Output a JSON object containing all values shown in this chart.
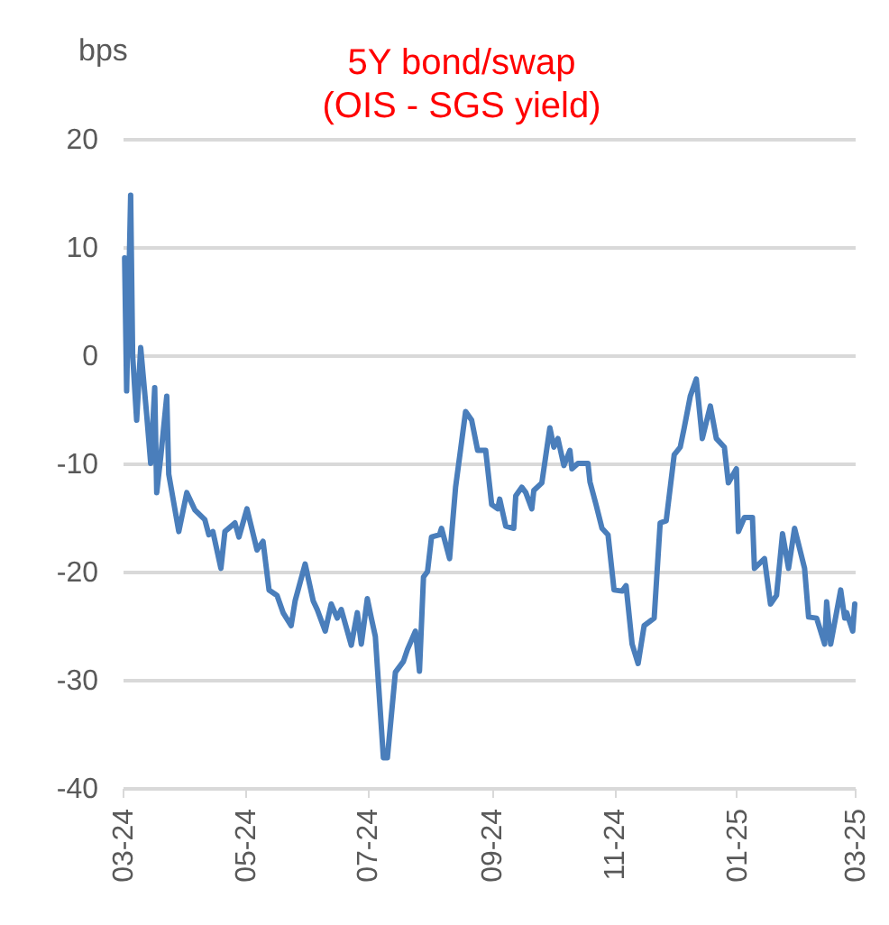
{
  "chart_data": {
    "type": "line",
    "title": "5Y bond/swap",
    "subtitle": "(OIS - SGS yield)",
    "ylabel": "bps",
    "x": [
      "2024-03-02",
      "2024-03-03",
      "2024-03-05",
      "2024-03-06",
      "2024-03-08",
      "2024-03-10",
      "2024-03-13",
      "2024-03-15",
      "2024-03-17",
      "2024-03-18",
      "2024-03-20",
      "2024-03-23",
      "2024-03-24",
      "2024-03-29",
      "2024-04-02",
      "2024-04-06",
      "2024-04-11",
      "2024-04-13",
      "2024-04-15",
      "2024-04-19",
      "2024-04-21",
      "2024-04-26",
      "2024-04-28",
      "2024-05-02",
      "2024-05-07",
      "2024-05-10",
      "2024-05-13",
      "2024-05-17",
      "2024-05-20",
      "2024-05-24",
      "2024-05-26",
      "2024-05-31",
      "2024-06-04",
      "2024-06-06",
      "2024-06-10",
      "2024-06-13",
      "2024-06-16",
      "2024-06-18",
      "2024-06-23",
      "2024-06-26",
      "2024-06-28",
      "2024-07-01",
      "2024-07-03",
      "2024-07-05",
      "2024-07-09",
      "2024-07-11",
      "2024-07-15",
      "2024-07-19",
      "2024-07-21",
      "2024-07-25",
      "2024-07-27",
      "2024-07-29",
      "2024-07-31",
      "2024-08-02",
      "2024-08-06",
      "2024-08-07",
      "2024-08-11",
      "2024-08-14",
      "2024-08-16",
      "2024-08-19",
      "2024-08-22",
      "2024-08-25",
      "2024-08-29",
      "2024-09-01",
      "2024-09-04",
      "2024-09-05",
      "2024-09-08",
      "2024-09-12",
      "2024-09-13",
      "2024-09-16",
      "2024-09-18",
      "2024-09-21",
      "2024-09-22",
      "2024-09-26",
      "2024-09-30",
      "2024-10-02",
      "2024-10-04",
      "2024-10-07",
      "2024-10-10",
      "2024-10-11",
      "2024-10-14",
      "2024-10-19",
      "2024-10-20",
      "2024-10-23",
      "2024-10-26",
      "2024-10-29",
      "2024-11-01",
      "2024-11-05",
      "2024-11-07",
      "2024-11-10",
      "2024-11-13",
      "2024-11-16",
      "2024-11-21",
      "2024-11-24",
      "2024-11-27",
      "2024-12-01",
      "2024-12-04",
      "2024-12-06",
      "2024-12-09",
      "2024-12-12",
      "2024-12-15",
      "2024-12-19",
      "2024-12-22",
      "2024-12-26",
      "2024-12-28",
      "2025-01-01",
      "2025-01-02",
      "2025-01-05",
      "2025-01-09",
      "2025-01-10",
      "2025-01-15",
      "2025-01-18",
      "2025-01-21",
      "2025-01-24",
      "2025-01-27",
      "2025-01-30",
      "2025-02-04",
      "2025-02-06",
      "2025-02-10",
      "2025-02-14",
      "2025-02-15",
      "2025-02-17",
      "2025-02-22",
      "2025-02-24",
      "2025-02-25",
      "2025-02-28",
      "2025-03-01"
    ],
    "series": [
      {
        "color": "#4a7ebb",
        "values": [
          9,
          -3.3,
          14.8,
          0,
          -6,
          0.7,
          -5.5,
          -10,
          -3,
          -12.7,
          -9.4,
          -3.8,
          -11,
          -16.3,
          -12.7,
          -14.3,
          -15.2,
          -16.6,
          -16.3,
          -19.7,
          -16.3,
          -15.5,
          -16.8,
          -14.2,
          -18,
          -17.2,
          -21.7,
          -22.2,
          -23.8,
          -25,
          -22.7,
          -19.3,
          -22.7,
          -23.5,
          -25.5,
          -23,
          -24.3,
          -23.5,
          -26.8,
          -23.8,
          -26.7,
          -22.5,
          -24.3,
          -26,
          -37.2,
          -37.2,
          -29.3,
          -28.3,
          -27.2,
          -25.5,
          -29.2,
          -20.5,
          -20,
          -16.8,
          -16.6,
          -16,
          -18.8,
          -12.2,
          -9.4,
          -5.2,
          -6,
          -8.8,
          -8.8,
          -13.8,
          -14.2,
          -13.3,
          -15.8,
          -16,
          -13,
          -12.2,
          -12.7,
          -14.2,
          -12.5,
          -11.8,
          -6.7,
          -8.5,
          -7.7,
          -10.2,
          -8.8,
          -10.5,
          -10,
          -10,
          -11.7,
          -13.8,
          -16,
          -16.6,
          -21.7,
          -21.8,
          -21.3,
          -26.7,
          -28.5,
          -25,
          -24.3,
          -15.5,
          -15.3,
          -9.2,
          -8.5,
          -6.7,
          -3.8,
          -2.2,
          -7.7,
          -4.7,
          -7.7,
          -8.5,
          -11.8,
          -10.5,
          -16.3,
          -15,
          -15,
          -19.7,
          -18.8,
          -23,
          -22.2,
          -16.5,
          -19.7,
          -16,
          -19.7,
          -24.2,
          -24.3,
          -26.7,
          -22.8,
          -26.7,
          -21.7,
          -24.3,
          -23.8,
          -25.5,
          -23
        ]
      }
    ],
    "xlim": [
      "2024-03-01",
      "2025-03-01"
    ],
    "xticks": [
      {
        "value": "2024-03-01",
        "label": "03-24"
      },
      {
        "value": "2024-05-01",
        "label": "05-24"
      },
      {
        "value": "2024-07-01",
        "label": "07-24"
      },
      {
        "value": "2024-09-01",
        "label": "09-24"
      },
      {
        "value": "2024-11-01",
        "label": "11-24"
      },
      {
        "value": "2025-01-01",
        "label": "01-25"
      },
      {
        "value": "2025-03-01",
        "label": "03-25"
      }
    ],
    "ylim": [
      -40,
      20
    ],
    "yticks": [
      -40,
      -30,
      -20,
      -10,
      0,
      10,
      20
    ],
    "grid": "y",
    "line_style": "solid",
    "marker": "none"
  }
}
